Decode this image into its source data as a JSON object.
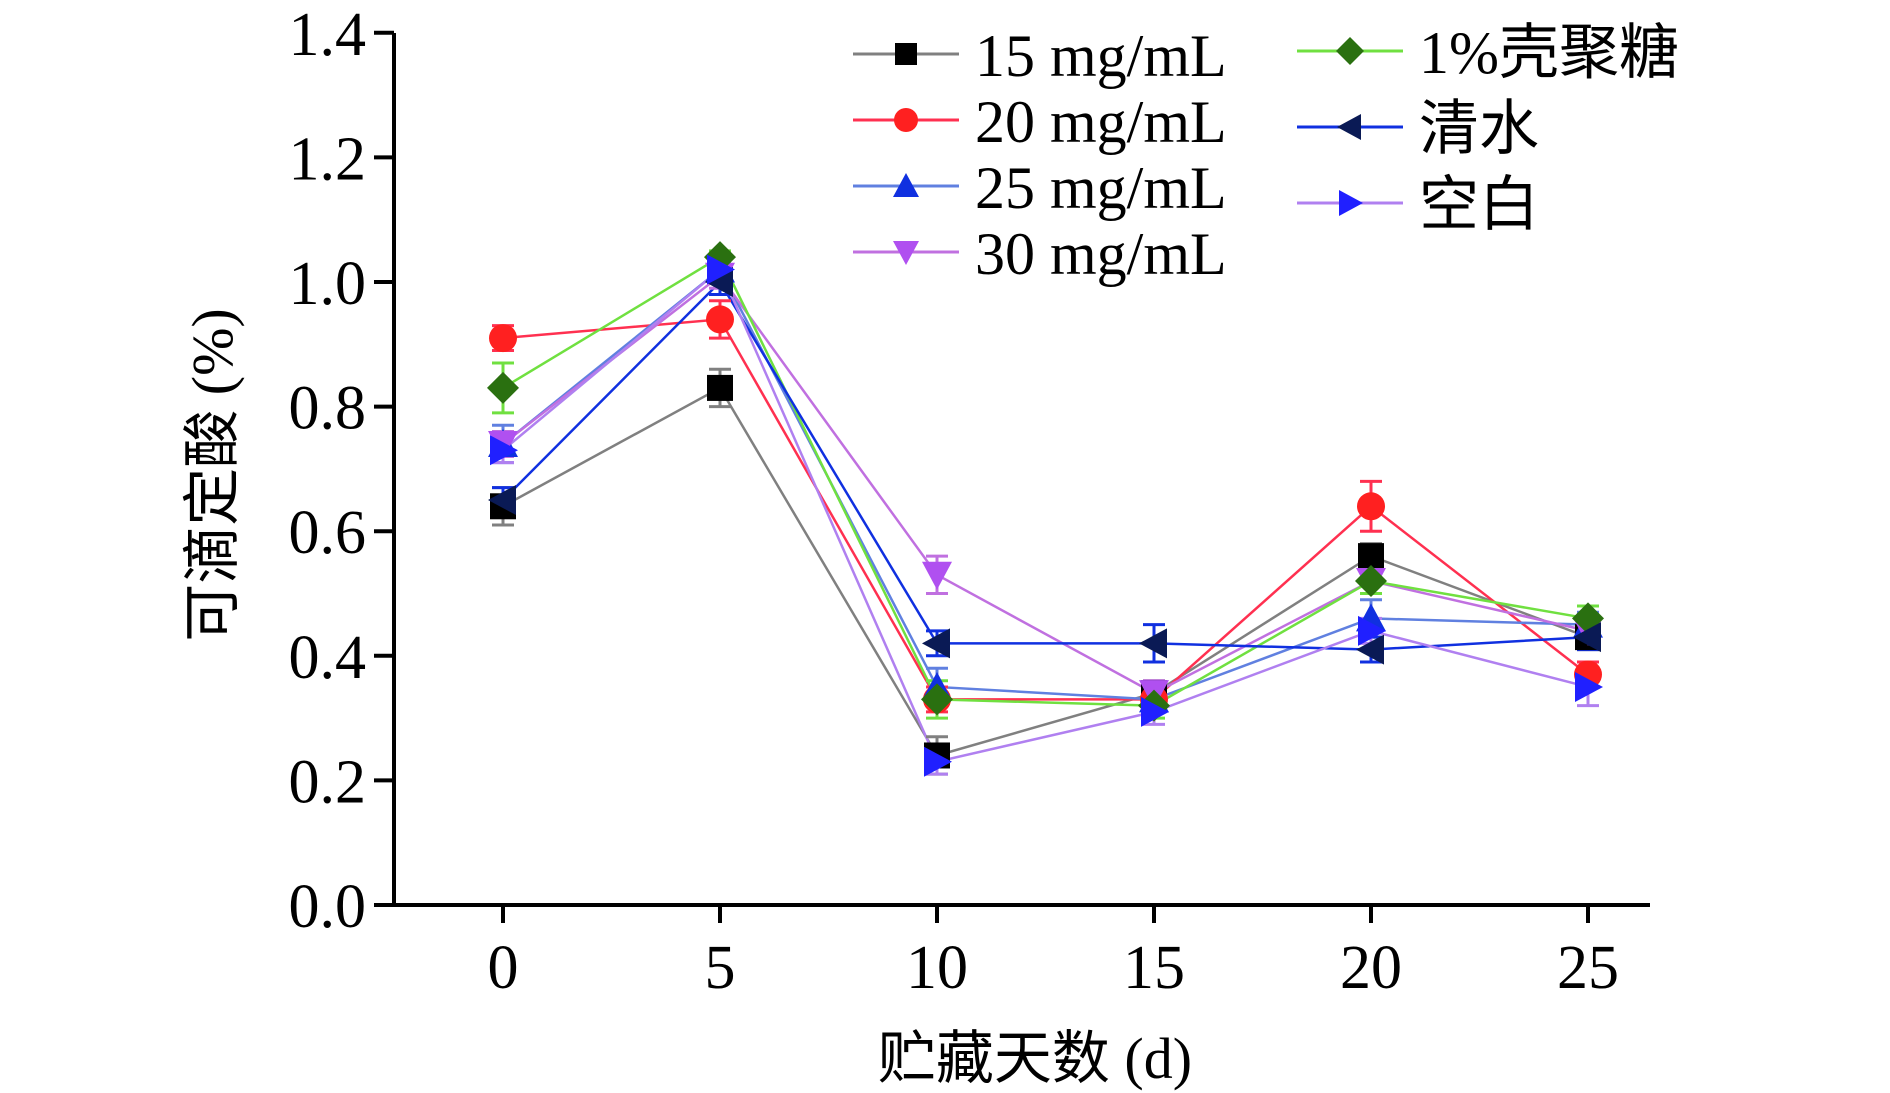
{
  "chart_data": {
    "type": "line",
    "title": "",
    "xlabel": "贮藏天数 (d)",
    "ylabel": "可滴定酸 (%)",
    "x": [
      0,
      5,
      10,
      15,
      20,
      25
    ],
    "x_ticks": [
      "0",
      "5",
      "10",
      "15",
      "20",
      "25"
    ],
    "y_ticks": [
      "0.0",
      "0.2",
      "0.4",
      "0.6",
      "0.8",
      "1.0",
      "1.2",
      "1.4"
    ],
    "xlim": [
      -2.5,
      27.5
    ],
    "ylim": [
      0,
      1.4
    ],
    "grid": false,
    "legend_position": "top-right",
    "series": [
      {
        "name": "15 mg/mL",
        "marker": "square",
        "marker_color": "#000000",
        "line_color": "#808080",
        "values": [
          0.64,
          0.83,
          0.24,
          0.34,
          0.56,
          0.43
        ],
        "errors": [
          0.03,
          0.03,
          0.03,
          0.02,
          0.02,
          0.02
        ]
      },
      {
        "name": "20 mg/mL",
        "marker": "circle",
        "marker_color": "#ff2020",
        "line_color": "#ff3050",
        "values": [
          0.91,
          0.94,
          0.33,
          0.33,
          0.64,
          0.37
        ],
        "errors": [
          0.02,
          0.03,
          0.02,
          0.02,
          0.04,
          0.02
        ]
      },
      {
        "name": "25 mg/mL",
        "marker": "triangle-up",
        "marker_color": "#1030e0",
        "line_color": "#6080e0",
        "values": [
          0.74,
          1.02,
          0.35,
          0.33,
          0.46,
          0.45
        ],
        "errors": [
          0.03,
          0.02,
          0.03,
          0.02,
          0.03,
          0.02
        ]
      },
      {
        "name": "30 mg/mL",
        "marker": "triangle-down",
        "marker_color": "#b050f0",
        "line_color": "#c070e0",
        "values": [
          0.74,
          1.01,
          0.53,
          0.34,
          0.52,
          0.44
        ],
        "errors": [
          0.02,
          0.02,
          0.03,
          0.02,
          0.02,
          0.02
        ]
      },
      {
        "name": "1%壳聚糖",
        "marker": "diamond",
        "marker_color": "#2a7010",
        "line_color": "#70e040",
        "values": [
          0.83,
          1.04,
          0.33,
          0.32,
          0.52,
          0.46
        ],
        "errors": [
          0.04,
          0.01,
          0.03,
          0.02,
          0.02,
          0.02
        ]
      },
      {
        "name": "清水",
        "marker": "triangle-left",
        "marker_color": "#0a1a55",
        "line_color": "#1030e0",
        "values": [
          0.65,
          1.0,
          0.42,
          0.42,
          0.41,
          0.43
        ],
        "errors": [
          0.02,
          0.02,
          0.02,
          0.03,
          0.02,
          0.02
        ]
      },
      {
        "name": "空白",
        "marker": "triangle-right",
        "marker_color": "#2020ff",
        "line_color": "#b080f0",
        "values": [
          0.73,
          1.02,
          0.23,
          0.31,
          0.44,
          0.35
        ],
        "errors": [
          0.02,
          0.02,
          0.02,
          0.02,
          0.02,
          0.03
        ]
      }
    ]
  }
}
